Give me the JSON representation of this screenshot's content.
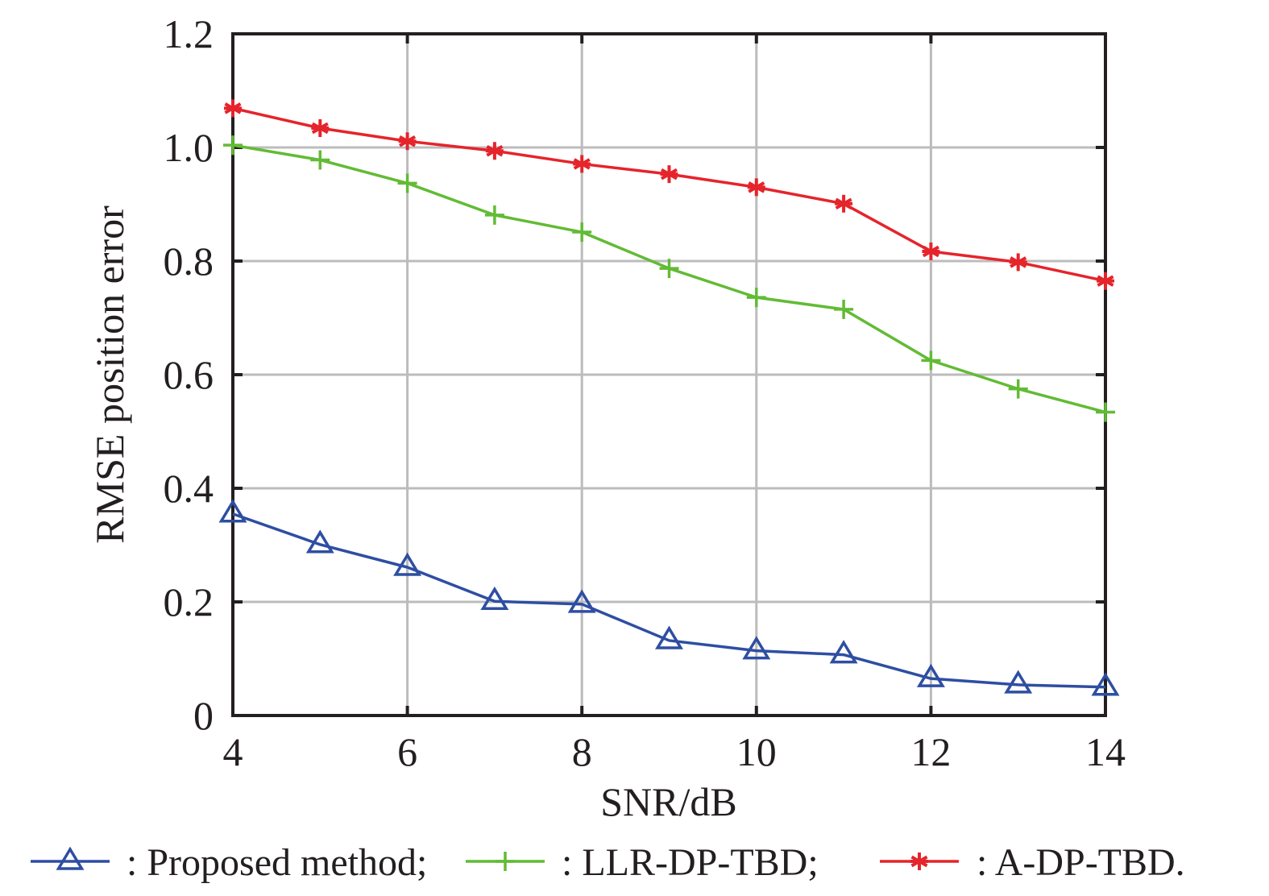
{
  "chart_data": {
    "type": "line",
    "title": "",
    "xlabel": "SNR/dB",
    "ylabel": "RMSE position error",
    "xlim": [
      4,
      14
    ],
    "ylim": [
      0,
      1.2
    ],
    "xticks": [
      4,
      6,
      8,
      10,
      12,
      14
    ],
    "xtick_labels": [
      "4",
      "6",
      "8",
      "10",
      "12",
      "14"
    ],
    "yticks": [
      0,
      0.2,
      0.4,
      0.6,
      0.8,
      1.0,
      1.2
    ],
    "ytick_labels": [
      "0",
      "0.2",
      "0.4",
      "0.6",
      "0.8",
      "1.0",
      "1.2"
    ],
    "grid": true,
    "legend_position": "bottom",
    "x": [
      4,
      5,
      6,
      7,
      8,
      9,
      10,
      11,
      12,
      13,
      14
    ],
    "series": [
      {
        "name": "Proposed method",
        "legend_label": ": Proposed method;",
        "marker": "triangle",
        "color": "#2e4ea2",
        "values": [
          0.355,
          0.301,
          0.261,
          0.201,
          0.196,
          0.132,
          0.114,
          0.107,
          0.065,
          0.054,
          0.05
        ]
      },
      {
        "name": "LLR-DP-TBD",
        "legend_label": ": LLR-DP-TBD;",
        "marker": "plus",
        "color": "#62bb35",
        "values": [
          1.004,
          0.978,
          0.937,
          0.881,
          0.851,
          0.787,
          0.736,
          0.715,
          0.625,
          0.575,
          0.534
        ]
      },
      {
        "name": "A-DP-TBD",
        "legend_label": ": A-DP-TBD.",
        "marker": "asterisk",
        "color": "#e5242b",
        "values": [
          1.069,
          1.034,
          1.011,
          0.994,
          0.971,
          0.953,
          0.93,
          0.901,
          0.817,
          0.798,
          0.765
        ]
      }
    ]
  }
}
